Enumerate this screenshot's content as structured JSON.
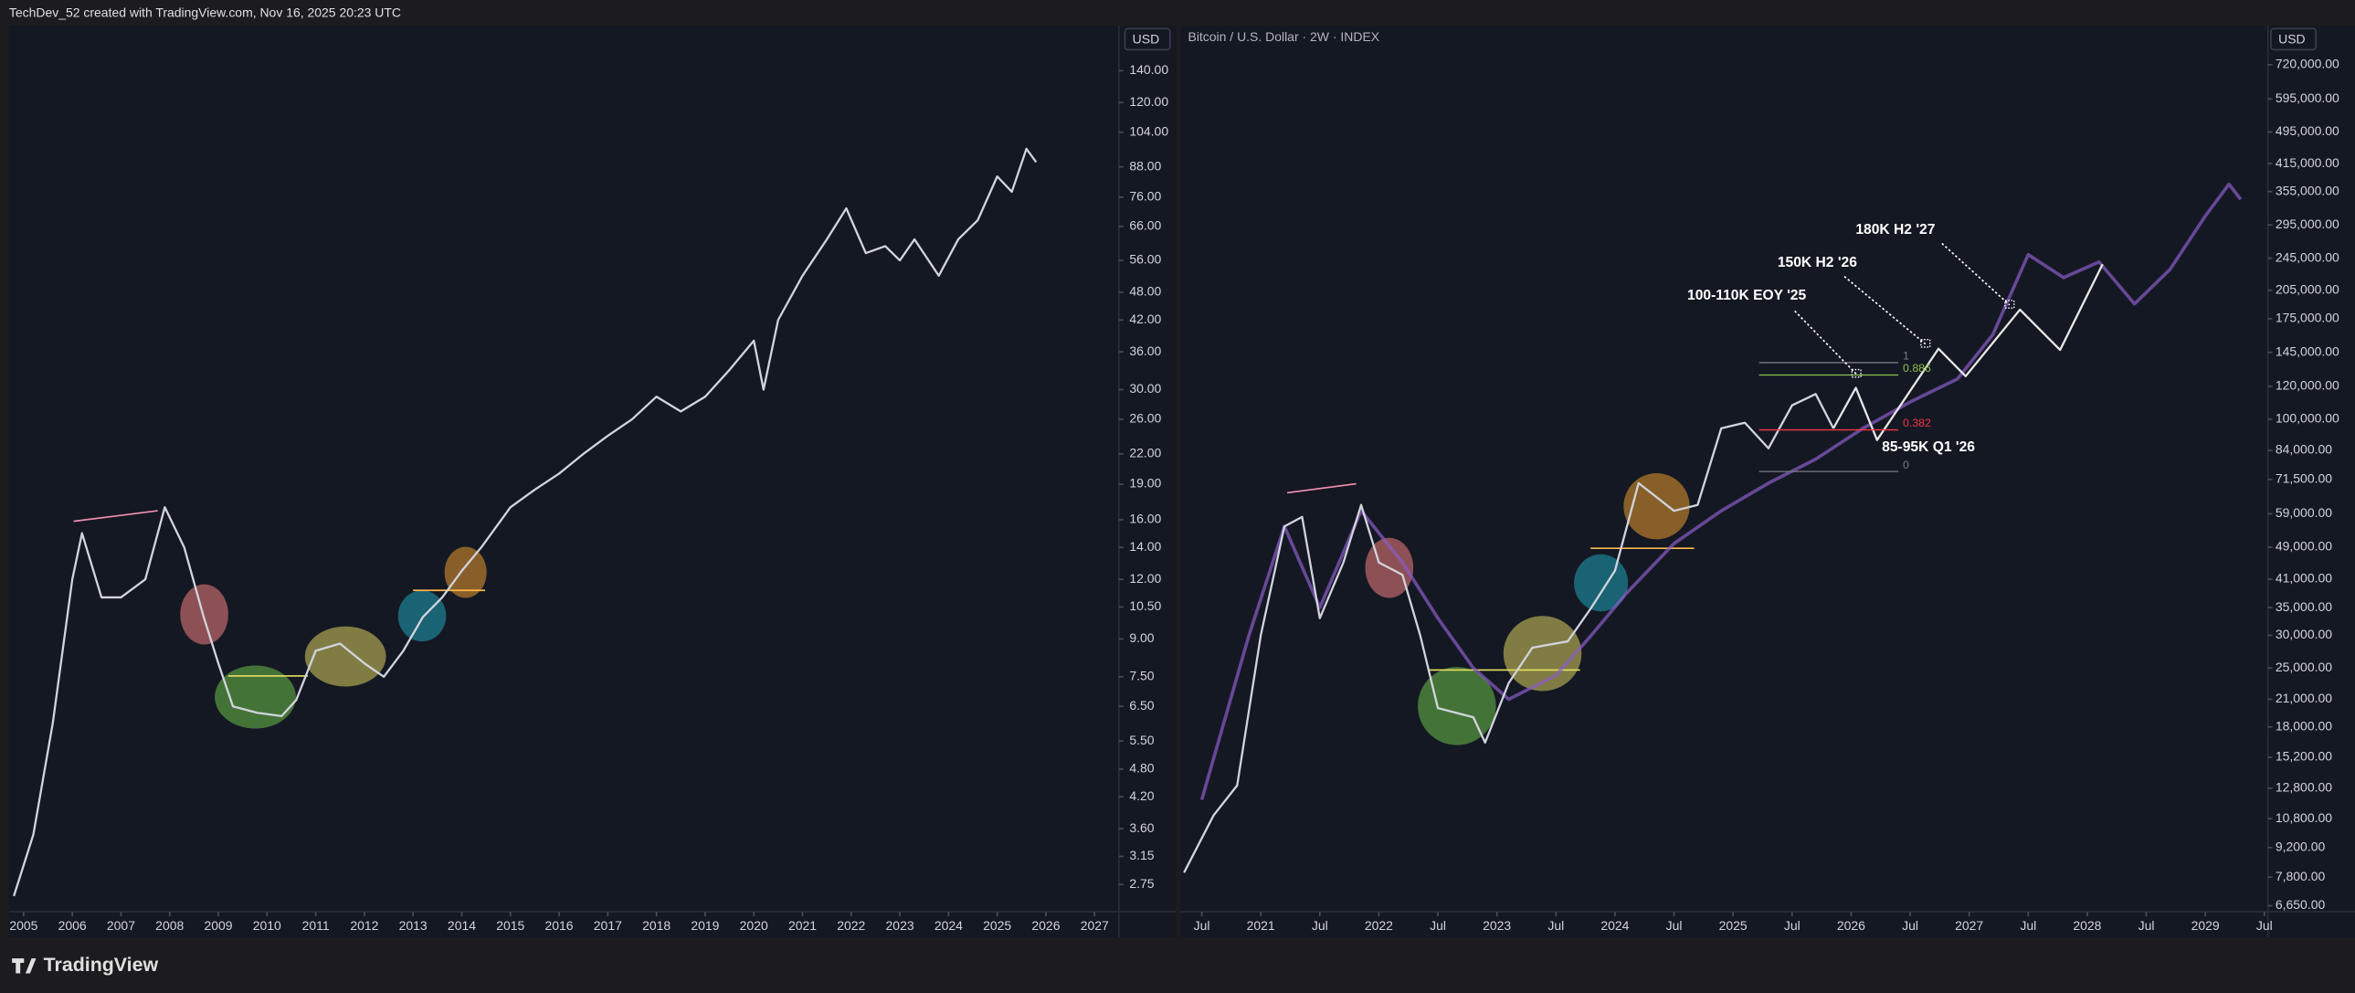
{
  "header": {
    "text": "TechDev_52 created with TradingView.com, Nov 16, 2025 20:23 UTC"
  },
  "footer": {
    "brand": "TradingView"
  },
  "chart_data": [
    {
      "type": "line",
      "currency": "USD",
      "log_scale": true,
      "xlim": [
        2004.7,
        2027.5
      ],
      "ylim": [
        2.41,
        174
      ],
      "xticks": [
        2005,
        2006,
        2007,
        2008,
        2009,
        2010,
        2011,
        2012,
        2013,
        2014,
        2015,
        2016,
        2017,
        2018,
        2019,
        2020,
        2021,
        2022,
        2023,
        2024,
        2025,
        2026,
        2027
      ],
      "yticks": [
        {
          "value": 140,
          "label": "140.00"
        },
        {
          "value": 120,
          "label": "120.00"
        },
        {
          "value": 104,
          "label": "104.00"
        },
        {
          "value": 88,
          "label": "88.00"
        },
        {
          "value": 76,
          "label": "76.00"
        },
        {
          "value": 66,
          "label": "66.00"
        },
        {
          "value": 56,
          "label": "56.00"
        },
        {
          "value": 48,
          "label": "48.00"
        },
        {
          "value": 42,
          "label": "42.00"
        },
        {
          "value": 36,
          "label": "36.00"
        },
        {
          "value": 30,
          "label": "30.00"
        },
        {
          "value": 26,
          "label": "26.00"
        },
        {
          "value": 22,
          "label": "22.00"
        },
        {
          "value": 19,
          "label": "19.00"
        },
        {
          "value": 16,
          "label": "16.00"
        },
        {
          "value": 14,
          "label": "14.00"
        },
        {
          "value": 12,
          "label": "12.00"
        },
        {
          "value": 10.5,
          "label": "10.50"
        },
        {
          "value": 9,
          "label": "9.00"
        },
        {
          "value": 7.5,
          "label": "7.50"
        },
        {
          "value": 6.5,
          "label": "6.50"
        },
        {
          "value": 5.5,
          "label": "5.50"
        },
        {
          "value": 4.8,
          "label": "4.80"
        },
        {
          "value": 4.2,
          "label": "4.20"
        },
        {
          "value": 3.6,
          "label": "3.60"
        },
        {
          "value": 3.15,
          "label": "3.15"
        },
        {
          "value": 2.75,
          "label": "2.75"
        }
      ],
      "series": [
        {
          "color": "#d1d4dc",
          "x": [
            2004.8,
            2005.2,
            2005.6,
            2006.0,
            2006.2,
            2006.6,
            2007.0,
            2007.5,
            2007.9,
            2008.3,
            2008.7,
            2009.0,
            2009.3,
            2009.8,
            2010.3,
            2010.6,
            2011.0,
            2011.5,
            2012.0,
            2012.4,
            2012.8,
            2013.2,
            2013.6,
            2014.0,
            2014.4,
            2015.0,
            2015.5,
            2016.0,
            2016.5,
            2017.0,
            2017.5,
            2018.0,
            2018.5,
            2019.0,
            2019.5,
            2020.0,
            2020.2,
            2020.5,
            2021.0,
            2021.5,
            2021.9,
            2022.3,
            2022.7,
            2023.0,
            2023.3,
            2023.8,
            2024.2,
            2024.6,
            2025.0,
            2025.3,
            2025.6,
            2025.8
          ],
          "values": [
            2.6,
            3.5,
            6,
            12,
            15,
            11,
            11,
            12,
            17,
            14,
            10,
            8,
            6.5,
            6.3,
            6.2,
            6.7,
            8.5,
            8.8,
            8,
            7.5,
            8.5,
            10,
            11,
            12.5,
            14,
            17,
            18.5,
            20,
            22,
            24,
            26,
            29,
            27,
            29,
            33,
            38,
            30,
            42,
            52,
            62,
            72,
            58,
            60,
            56,
            62,
            52,
            62,
            68,
            84,
            78,
            96,
            90
          ]
        }
      ]
    },
    {
      "type": "line",
      "title": "Bitcoin / U.S. Dollar · 2W · INDEX",
      "currency": "USD",
      "log_scale": true,
      "xlim": [
        2020.32,
        2029.53
      ],
      "ylim": [
        6430,
        895000
      ],
      "xticks": [
        {
          "value": 2020.5,
          "label": "Jul"
        },
        2021,
        {
          "value": 2021.5,
          "label": "Jul"
        },
        2022,
        {
          "value": 2022.5,
          "label": "Jul"
        },
        2023,
        {
          "value": 2023.5,
          "label": "Jul"
        },
        2024,
        {
          "value": 2024.5,
          "label": "Jul"
        },
        2025,
        {
          "value": 2025.5,
          "label": "Jul"
        },
        2026,
        {
          "value": 2026.5,
          "label": "Jul"
        },
        2027,
        {
          "value": 2027.5,
          "label": "Jul"
        },
        2028,
        {
          "value": 2028.5,
          "label": "Jul"
        },
        2029,
        {
          "value": 2029.5,
          "label": "Jul"
        }
      ],
      "yticks": [
        {
          "value": 720000,
          "label": "720,000.00"
        },
        {
          "value": 595000,
          "label": "595,000.00"
        },
        {
          "value": 495000,
          "label": "495,000.00"
        },
        {
          "value": 415000,
          "label": "415,000.00"
        },
        {
          "value": 355000,
          "label": "355,000.00"
        },
        {
          "value": 295000,
          "label": "295,000.00"
        },
        {
          "value": 245000,
          "label": "245,000.00"
        },
        {
          "value": 205000,
          "label": "205,000.00"
        },
        {
          "value": 175000,
          "label": "175,000.00"
        },
        {
          "value": 145000,
          "label": "145,000.00"
        },
        {
          "value": 120000,
          "label": "120,000.00"
        },
        {
          "value": 100000,
          "label": "100,000.00"
        },
        {
          "value": 84000,
          "label": "84,000.00"
        },
        {
          "value": 71500,
          "label": "71,500.00"
        },
        {
          "value": 59000,
          "label": "59,000.00"
        },
        {
          "value": 49000,
          "label": "49,000.00"
        },
        {
          "value": 41000,
          "label": "41,000.00"
        },
        {
          "value": 35000,
          "label": "35,000.00"
        },
        {
          "value": 30000,
          "label": "30,000.00"
        },
        {
          "value": 25000,
          "label": "25,000.00"
        },
        {
          "value": 21000,
          "label": "21,000.00"
        },
        {
          "value": 18000,
          "label": "18,000.00"
        },
        {
          "value": 15200,
          "label": "15,200.00"
        },
        {
          "value": 12800,
          "label": "12,800.00"
        },
        {
          "value": 10800,
          "label": "10,800.00"
        },
        {
          "value": 9200,
          "label": "9,200.00"
        },
        {
          "value": 7800,
          "label": "7,800.00"
        },
        {
          "value": 6650,
          "label": "6,650.00"
        }
      ],
      "series": [
        {
          "color": "#8a5cc8",
          "x": [
            2020.5,
            2020.9,
            2021.2,
            2021.5,
            2021.85,
            2022.2,
            2022.5,
            2022.8,
            2023.1,
            2023.5,
            2023.8,
            2024.1,
            2024.5,
            2024.9,
            2025.3,
            2025.7,
            2026.1,
            2026.5,
            2026.9,
            2027.2,
            2027.5,
            2027.8,
            2028.1,
            2028.4,
            2028.7,
            2029.0,
            2029.2,
            2029.3
          ],
          "values": [
            12000,
            30000,
            55000,
            35000,
            60000,
            45000,
            33000,
            25000,
            21000,
            24000,
            30000,
            38000,
            50000,
            60000,
            70000,
            80000,
            95000,
            110000,
            125000,
            160000,
            250000,
            220000,
            240000,
            190000,
            230000,
            310000,
            370000,
            340000
          ]
        },
        {
          "color": "#d1d4dc",
          "x": [
            2020.35,
            2020.6,
            2020.8,
            2021.0,
            2021.2,
            2021.35,
            2021.5,
            2021.7,
            2021.85,
            2022.0,
            2022.2,
            2022.35,
            2022.5,
            2022.8,
            2022.9,
            2023.1,
            2023.3,
            2023.6,
            2023.8,
            2024.0,
            2024.2,
            2024.5,
            2024.7,
            2024.9,
            2025.1,
            2025.3,
            2025.5,
            2025.7,
            2025.85
          ],
          "values": [
            8000,
            11000,
            13000,
            30000,
            55000,
            58000,
            33000,
            45000,
            62000,
            45000,
            42000,
            30000,
            20000,
            19000,
            16500,
            23000,
            28000,
            29000,
            35000,
            43000,
            70000,
            60000,
            62000,
            95000,
            98000,
            85000,
            108000,
            115000,
            95000
          ]
        },
        {
          "color": "#e6e6e6",
          "x": [
            2025.85,
            2026.04,
            2026.22,
            2026.74,
            2026.97,
            2027.43,
            2027.77,
            2028.13
          ],
          "values": [
            95000,
            119000,
            89000,
            148000,
            127000,
            184000,
            147000,
            237000
          ]
        }
      ],
      "annotations": [
        {
          "text": "100-110K EOY '25"
        },
        {
          "text": "150K H2 '26"
        },
        {
          "text": "180K H2 '27"
        },
        {
          "text": "85-95K Q1 '26"
        }
      ],
      "fib": {
        "levels": [
          1,
          0.886,
          0.382,
          0
        ],
        "colors": [
          "#787b86",
          "#8bc34a",
          "#f23645",
          "#787b86"
        ],
        "range": [
          74700,
          137000
        ],
        "xrange": [
          2025.22,
          2026.4
        ]
      }
    }
  ]
}
